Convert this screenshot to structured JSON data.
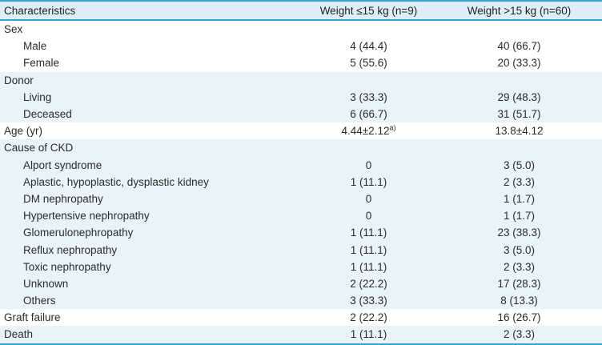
{
  "colors": {
    "border_blue": "#35a5d8",
    "header_bg": "#ddeef8",
    "band_blue_bg": "#e9f3fa",
    "text": "#2b2b2b"
  },
  "table": {
    "columns": [
      "Characteristics",
      "Weight ≤15 kg (n=9)",
      "Weight >15 kg (n=60)"
    ],
    "rows": [
      {
        "label": "Sex",
        "indent": 0,
        "band": "white",
        "c1": "",
        "c2": ""
      },
      {
        "label": "Male",
        "indent": 1,
        "band": "white",
        "c1": "4 (44.4)",
        "c2": "40 (66.7)"
      },
      {
        "label": "Female",
        "indent": 1,
        "band": "white",
        "c1": "5 (55.6)",
        "c2": "20 (33.3)"
      },
      {
        "label": "Donor",
        "indent": 0,
        "band": "blue",
        "c1": "",
        "c2": ""
      },
      {
        "label": "Living",
        "indent": 1,
        "band": "blue",
        "c1": "3 (33.3)",
        "c2": "29 (48.3)"
      },
      {
        "label": "Deceased",
        "indent": 1,
        "band": "blue",
        "c1": "6 (66.7)",
        "c2": "31 (51.7)"
      },
      {
        "label": "Age (yr)",
        "indent": 0,
        "band": "white",
        "c1": "4.44±2.12",
        "c1_sup": "a)",
        "c2": "13.8±4.12"
      },
      {
        "label": "Cause of CKD",
        "indent": 0,
        "band": "blue",
        "c1": "",
        "c2": ""
      },
      {
        "label": "Alport syndrome",
        "indent": 1,
        "band": "blue",
        "c1": "0",
        "c2": "3 (5.0)"
      },
      {
        "label": "Aplastic, hypoplastic, dysplastic kidney",
        "indent": 1,
        "band": "blue",
        "c1": "1 (11.1)",
        "c2": "2 (3.3)"
      },
      {
        "label": "DM nephropathy",
        "indent": 1,
        "band": "blue",
        "c1": "0",
        "c2": "1 (1.7)"
      },
      {
        "label": "Hypertensive nephropathy",
        "indent": 1,
        "band": "blue",
        "c1": "0",
        "c2": "1 (1.7)"
      },
      {
        "label": "Glomerulonephropathy",
        "indent": 1,
        "band": "blue",
        "c1": "1 (11.1)",
        "c2": "23 (38.3)"
      },
      {
        "label": "Reflux nephropathy",
        "indent": 1,
        "band": "blue",
        "c1": "1 (11.1)",
        "c2": "3 (5.0)"
      },
      {
        "label": "Toxic nephropathy",
        "indent": 1,
        "band": "blue",
        "c1": "1 (11.1)",
        "c2": "2 (3.3)"
      },
      {
        "label": "Unknown",
        "indent": 1,
        "band": "blue",
        "c1": "2 (22.2)",
        "c2": "17 (28.3)"
      },
      {
        "label": "Others",
        "indent": 1,
        "band": "blue",
        "c1": "3 (33.3)",
        "c2": "8 (13.3)"
      },
      {
        "label": "Graft failure",
        "indent": 0,
        "band": "white",
        "c1": "2 (22.2)",
        "c2": "16 (26.7)"
      },
      {
        "label": "Death",
        "indent": 0,
        "band": "blue",
        "c1": "1 (11.1)",
        "c2": "2 (3.3)"
      }
    ]
  }
}
